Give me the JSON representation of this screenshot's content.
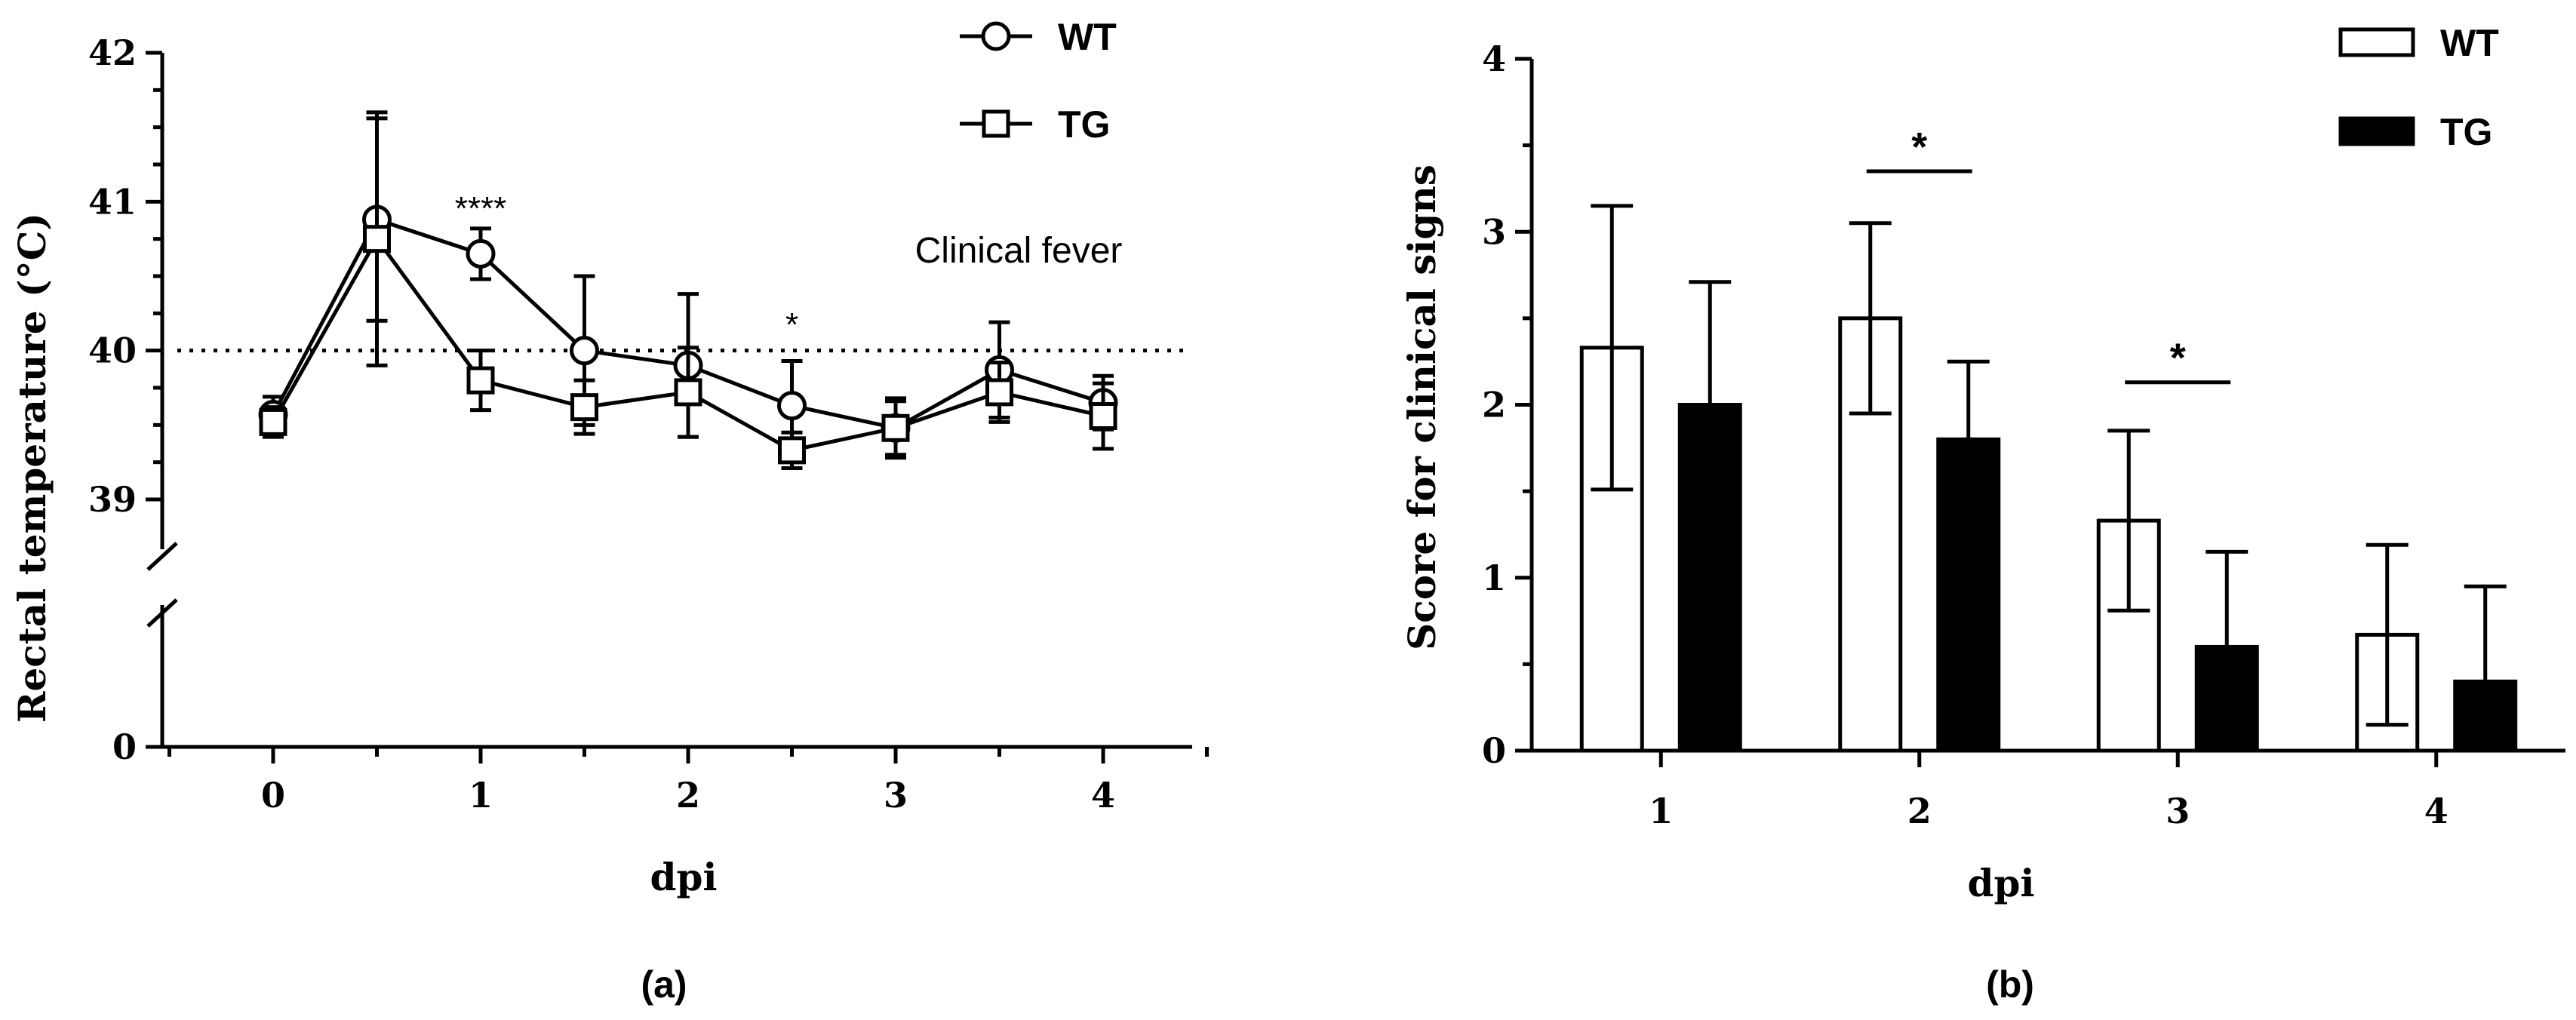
{
  "chart_data": [
    {
      "type": "line",
      "panel_label": "(a)",
      "xlabel": "dpi",
      "ylabel": "Rectal temperature (°C)",
      "x_ticks": [
        "0",
        "1",
        "2",
        "3",
        "4"
      ],
      "y_ticks": [
        "39",
        "40",
        "41",
        "42"
      ],
      "y_zero_label": "0",
      "ylim": [
        38.5,
        42
      ],
      "xlim": [
        -0.5,
        4.5
      ],
      "y_axis_break": true,
      "threshold": {
        "value": 40,
        "style": "dotted",
        "label": "Clinical fever"
      },
      "x": [
        0,
        0.5,
        1,
        1.5,
        2,
        2.5,
        3,
        3.5,
        4
      ],
      "series": [
        {
          "name": "WT",
          "marker": "circle",
          "values": [
            39.57,
            40.88,
            40.65,
            40.0,
            39.9,
            39.63,
            39.48,
            39.87,
            39.65
          ],
          "errors": [
            0.12,
            0.68,
            0.17,
            0.5,
            0.48,
            0.3,
            0.18,
            0.32,
            0.18
          ]
        },
        {
          "name": "TG",
          "marker": "square",
          "values": [
            39.52,
            40.75,
            39.8,
            39.62,
            39.72,
            39.33,
            39.48,
            39.72,
            39.56
          ],
          "errors": [
            0.1,
            0.85,
            0.2,
            0.18,
            0.3,
            0.12,
            0.2,
            0.2,
            0.22
          ]
        }
      ],
      "annotations": [
        {
          "text": "****",
          "x": 1,
          "y": 40.95
        },
        {
          "text": "*",
          "x": 2.5,
          "y": 40.17
        }
      ],
      "legend": {
        "placement": "top-right",
        "entries": [
          "WT",
          "TG"
        ]
      }
    },
    {
      "type": "bar",
      "panel_label": "(b)",
      "xlabel": "dpi",
      "ylabel": "Score for clinical signs",
      "categories": [
        "1",
        "2",
        "3",
        "4"
      ],
      "y_ticks": [
        "0",
        "1",
        "2",
        "3",
        "4"
      ],
      "ylim": [
        0,
        4
      ],
      "series": [
        {
          "name": "WT",
          "fill": "#ffffff",
          "values": [
            2.33,
            2.5,
            1.33,
            0.67
          ],
          "errors": [
            0.82,
            0.55,
            0.52,
            0.52
          ]
        },
        {
          "name": "TG",
          "fill": "#000000",
          "values": [
            2.0,
            1.8,
            0.6,
            0.4
          ],
          "errors": [
            0.71,
            0.45,
            0.55,
            0.55
          ]
        }
      ],
      "significance": [
        {
          "category": "2",
          "text": "*",
          "y": 3.35
        },
        {
          "category": "3",
          "text": "*",
          "y": 2.13
        }
      ],
      "legend": {
        "placement": "top-right",
        "entries": [
          "WT",
          "TG"
        ]
      }
    }
  ]
}
